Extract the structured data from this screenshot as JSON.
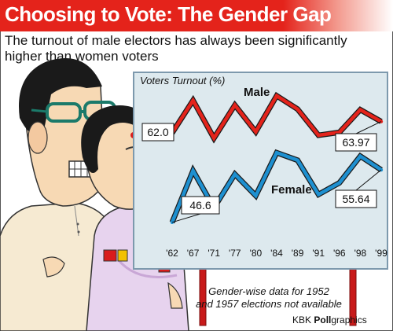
{
  "header": {
    "title": "Choosing to Vote: The Gender Gap",
    "subtitle": "The turnout of male electors has always been significantly higher than women voters"
  },
  "footer": {
    "note_line1": "Gender-wise data for 1952",
    "note_line2": "and 1957 elections not available",
    "credit_brand": "KBK",
    "credit_bold": "Poll",
    "credit_rest": "graphics"
  },
  "colors": {
    "title_bar": "#e4231b",
    "board": "#dde9ee",
    "male": "#e4231b",
    "female": "#1e90d0",
    "post": "#c81a1a"
  },
  "chart_data": {
    "type": "line",
    "title": "Voters Turnout (%)",
    "x": [
      "'62",
      "'67",
      "'71",
      "'77",
      "'80",
      "'84",
      "'89",
      "'91",
      "'96",
      "'98",
      "'99"
    ],
    "series": [
      {
        "name": "Male",
        "values": [
          62.0,
          67.6,
          61.1,
          66.8,
          62.2,
          68.4,
          66.1,
          61.6,
          62.1,
          66.0,
          63.97
        ]
      },
      {
        "name": "Female",
        "values": [
          46.6,
          55.5,
          49.1,
          54.9,
          51.2,
          58.6,
          57.3,
          51.4,
          53.4,
          58.0,
          55.64
        ]
      }
    ],
    "value_labels": [
      {
        "series": "Male",
        "index": 0,
        "text": "62.0"
      },
      {
        "series": "Male",
        "index": 10,
        "text": "63.97"
      },
      {
        "series": "Female",
        "index": 0,
        "text": "46.6"
      },
      {
        "series": "Female",
        "index": 10,
        "text": "55.64"
      }
    ],
    "ylim": [
      44,
      70
    ],
    "grid": false,
    "legend": "inline"
  }
}
